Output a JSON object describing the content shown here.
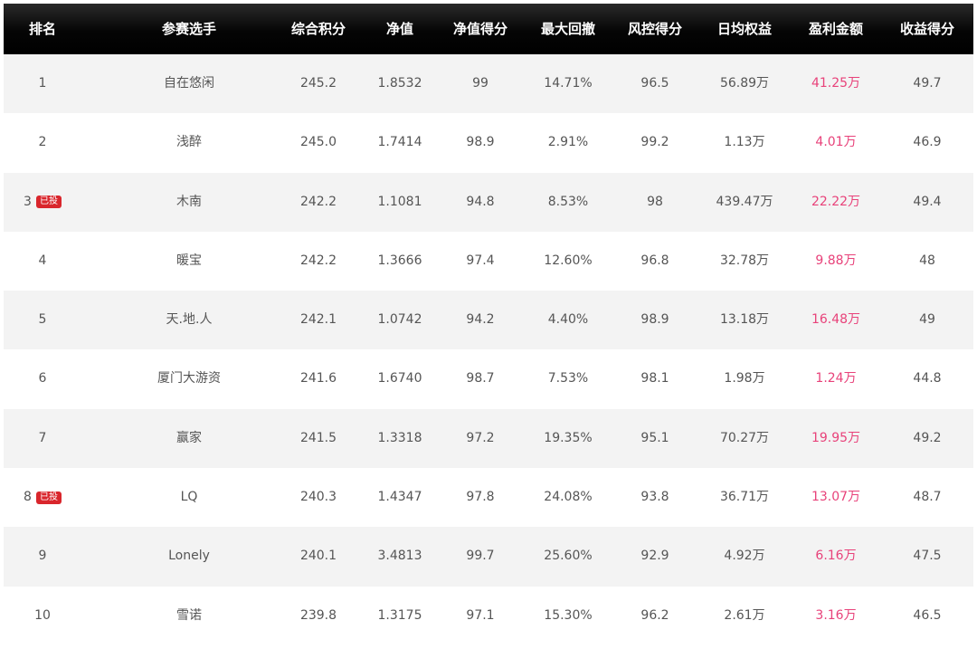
{
  "header": {
    "rank": "排名",
    "player": "参赛选手",
    "total_score": "综合积分",
    "nav": "净值",
    "nav_score": "净值得分",
    "max_drawdown": "最大回撤",
    "risk_score": "风控得分",
    "avg_daily_equity": "日均权益",
    "profit_amount": "盈利金额",
    "return_score": "收益得分"
  },
  "rows": [
    {
      "rank": "1",
      "badge": "",
      "player": "自在悠闲",
      "total_score": "245.2",
      "nav": "1.8532",
      "nav_score": "99",
      "max_drawdown": "14.71%",
      "risk_score": "96.5",
      "avg_daily_equity": "56.89万",
      "profit_amount": "41.25万",
      "return_score": "49.7"
    },
    {
      "rank": "2",
      "badge": "",
      "player": "浅醉",
      "total_score": "245.0",
      "nav": "1.7414",
      "nav_score": "98.9",
      "max_drawdown": "2.91%",
      "risk_score": "99.2",
      "avg_daily_equity": "1.13万",
      "profit_amount": "4.01万",
      "return_score": "46.9"
    },
    {
      "rank": "3",
      "badge": "已投",
      "player": "木南",
      "total_score": "242.2",
      "nav": "1.1081",
      "nav_score": "94.8",
      "max_drawdown": "8.53%",
      "risk_score": "98",
      "avg_daily_equity": "439.47万",
      "profit_amount": "22.22万",
      "return_score": "49.4"
    },
    {
      "rank": "4",
      "badge": "",
      "player": "暖宝",
      "total_score": "242.2",
      "nav": "1.3666",
      "nav_score": "97.4",
      "max_drawdown": "12.60%",
      "risk_score": "96.8",
      "avg_daily_equity": "32.78万",
      "profit_amount": "9.88万",
      "return_score": "48"
    },
    {
      "rank": "5",
      "badge": "",
      "player": "天.地.人",
      "total_score": "242.1",
      "nav": "1.0742",
      "nav_score": "94.2",
      "max_drawdown": "4.40%",
      "risk_score": "98.9",
      "avg_daily_equity": "13.18万",
      "profit_amount": "16.48万",
      "return_score": "49"
    },
    {
      "rank": "6",
      "badge": "",
      "player": "厦门大游资",
      "total_score": "241.6",
      "nav": "1.6740",
      "nav_score": "98.7",
      "max_drawdown": "7.53%",
      "risk_score": "98.1",
      "avg_daily_equity": "1.98万",
      "profit_amount": "1.24万",
      "return_score": "44.8"
    },
    {
      "rank": "7",
      "badge": "",
      "player": "赢家",
      "total_score": "241.5",
      "nav": "1.3318",
      "nav_score": "97.2",
      "max_drawdown": "19.35%",
      "risk_score": "95.1",
      "avg_daily_equity": "70.27万",
      "profit_amount": "19.95万",
      "return_score": "49.2"
    },
    {
      "rank": "8",
      "badge": "已投",
      "player": "LQ",
      "total_score": "240.3",
      "nav": "1.4347",
      "nav_score": "97.8",
      "max_drawdown": "24.08%",
      "risk_score": "93.8",
      "avg_daily_equity": "36.71万",
      "profit_amount": "13.07万",
      "return_score": "48.7"
    },
    {
      "rank": "9",
      "badge": "",
      "player": "Lonely",
      "total_score": "240.1",
      "nav": "3.4813",
      "nav_score": "99.7",
      "max_drawdown": "25.60%",
      "risk_score": "92.9",
      "avg_daily_equity": "4.92万",
      "profit_amount": "6.16万",
      "return_score": "47.5"
    },
    {
      "rank": "10",
      "badge": "",
      "player": "雪诺",
      "total_score": "239.8",
      "nav": "1.3175",
      "nav_score": "97.1",
      "max_drawdown": "15.30%",
      "risk_score": "96.2",
      "avg_daily_equity": "2.61万",
      "profit_amount": "3.16万",
      "return_score": "46.5"
    }
  ],
  "colors": {
    "header_bg": "#000000",
    "header_text": "#ffffff",
    "row_alt_bg": "#f3f3f3",
    "body_text": "#555555",
    "profit_text": "#e8427a",
    "badge_bg": "#d9262c"
  }
}
